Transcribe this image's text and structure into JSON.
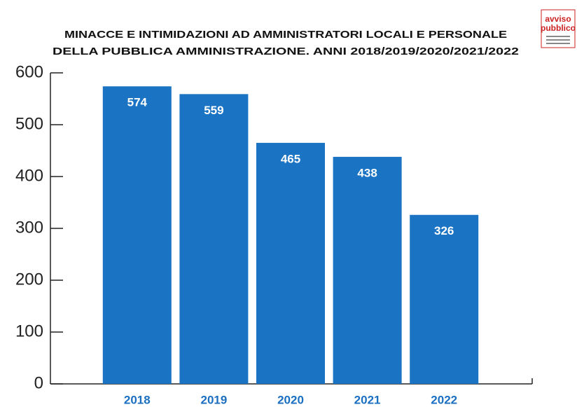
{
  "chart_data": {
    "type": "bar",
    "title": [
      "MINACCE E INTIMIDAZIONI AD AMMINISTRATORI LOCALI E PERSONALE",
      "DELLA PUBBLICA AMMINISTRAZIONE. ANNI 2018/2019/2020/2021/2022"
    ],
    "categories": [
      "2018",
      "2019",
      "2020",
      "2021",
      "2022"
    ],
    "values": [
      574,
      559,
      465,
      438,
      326
    ],
    "color": "#1b74c3",
    "ylim": [
      0,
      600
    ],
    "yticks": [
      0,
      100,
      200,
      300,
      400,
      500,
      600
    ],
    "grid": false
  },
  "logo": {
    "lines": [
      "avviso",
      "pubblico"
    ]
  }
}
